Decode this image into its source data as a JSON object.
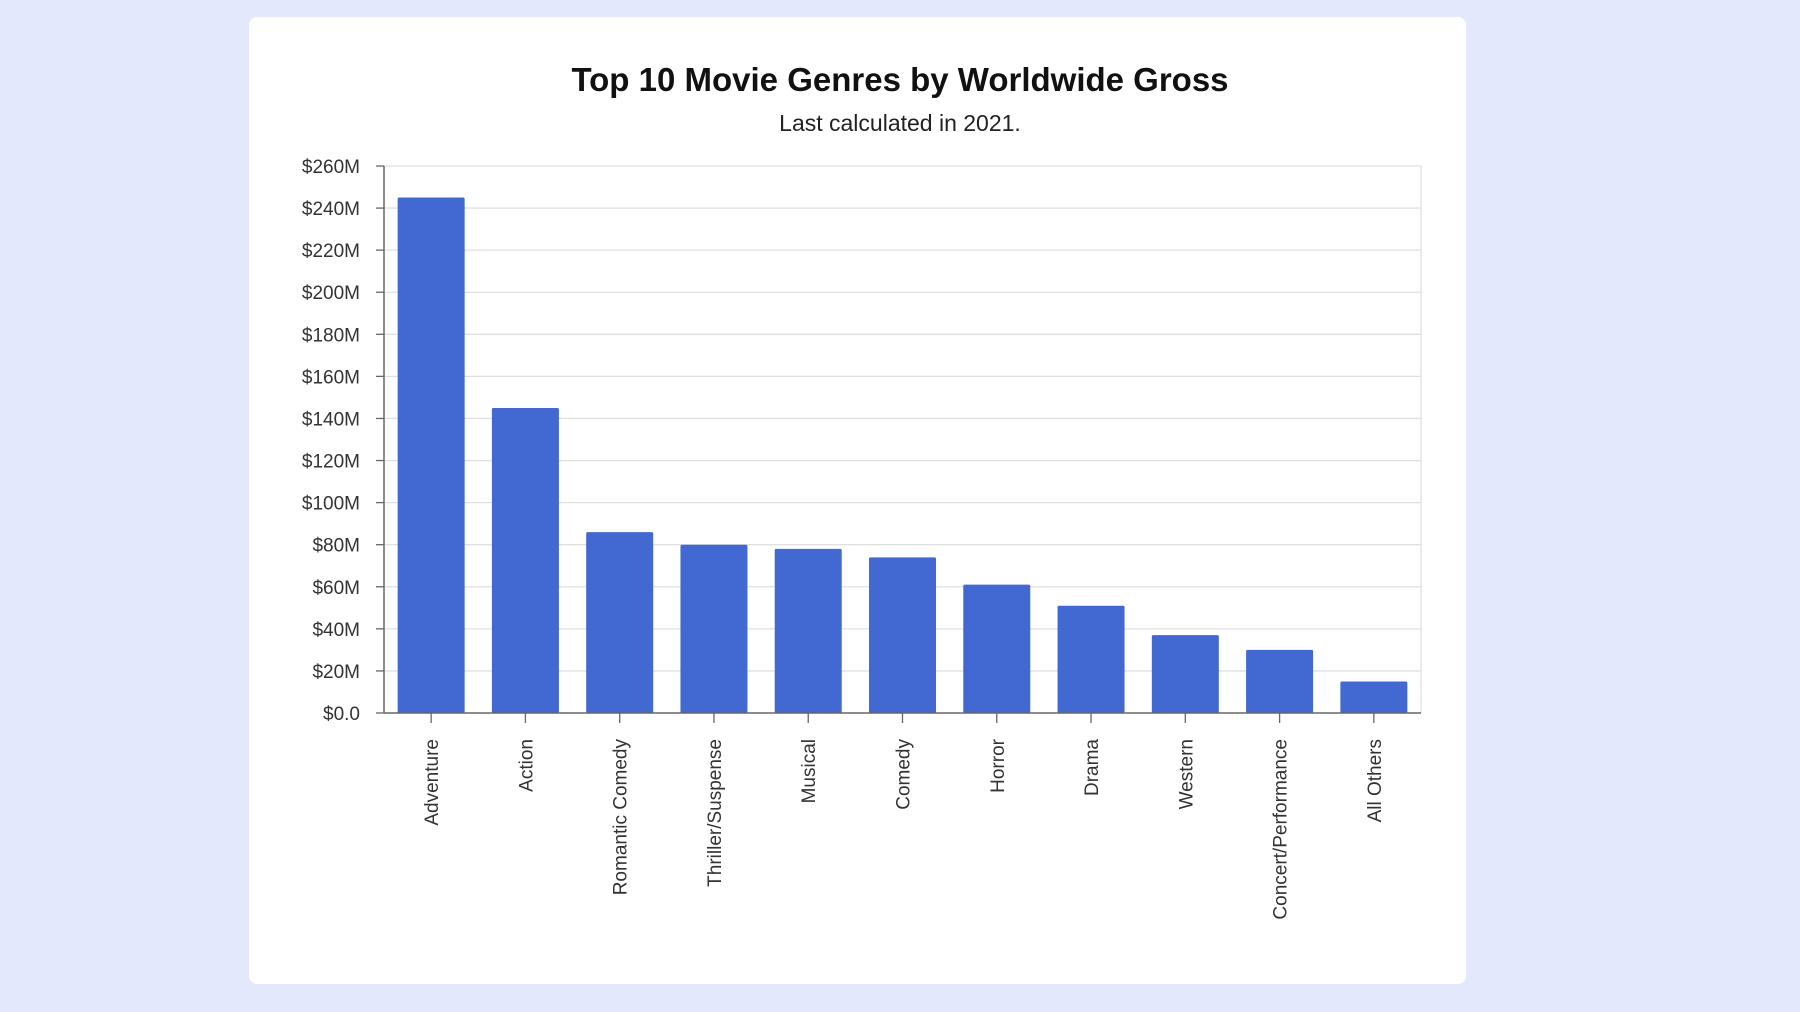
{
  "colors": {
    "background": "#e3e8fc",
    "card": "#ffffff",
    "bar": "#4169d1",
    "grid": "#e0e0e0"
  },
  "chart_data": {
    "type": "bar",
    "title": "Top 10 Movie Genres by Worldwide Gross",
    "subtitle": "Last calculated in 2021.",
    "xlabel": "",
    "ylabel": "",
    "categories": [
      "Adventure",
      "Action",
      "Romantic Comedy",
      "Thriller/Suspense",
      "Musical",
      "Comedy",
      "Horror",
      "Drama",
      "Western",
      "Concert/Performance",
      "All Others"
    ],
    "values": [
      245,
      145,
      86,
      80,
      78,
      74,
      61,
      51,
      37,
      30,
      15
    ],
    "value_unit": "$M",
    "ylim": [
      0,
      260
    ],
    "yticks": [
      0,
      20,
      40,
      60,
      80,
      100,
      120,
      140,
      160,
      180,
      200,
      220,
      240,
      260
    ],
    "ytick_labels": [
      "$0.0",
      "$20M",
      "$40M",
      "$60M",
      "$80M",
      "$100M",
      "$120M",
      "$140M",
      "$160M",
      "$180M",
      "$200M",
      "$220M",
      "$240M",
      "$260M"
    ],
    "grid": true,
    "legend": "none",
    "xtick_rotation": "vertical"
  }
}
